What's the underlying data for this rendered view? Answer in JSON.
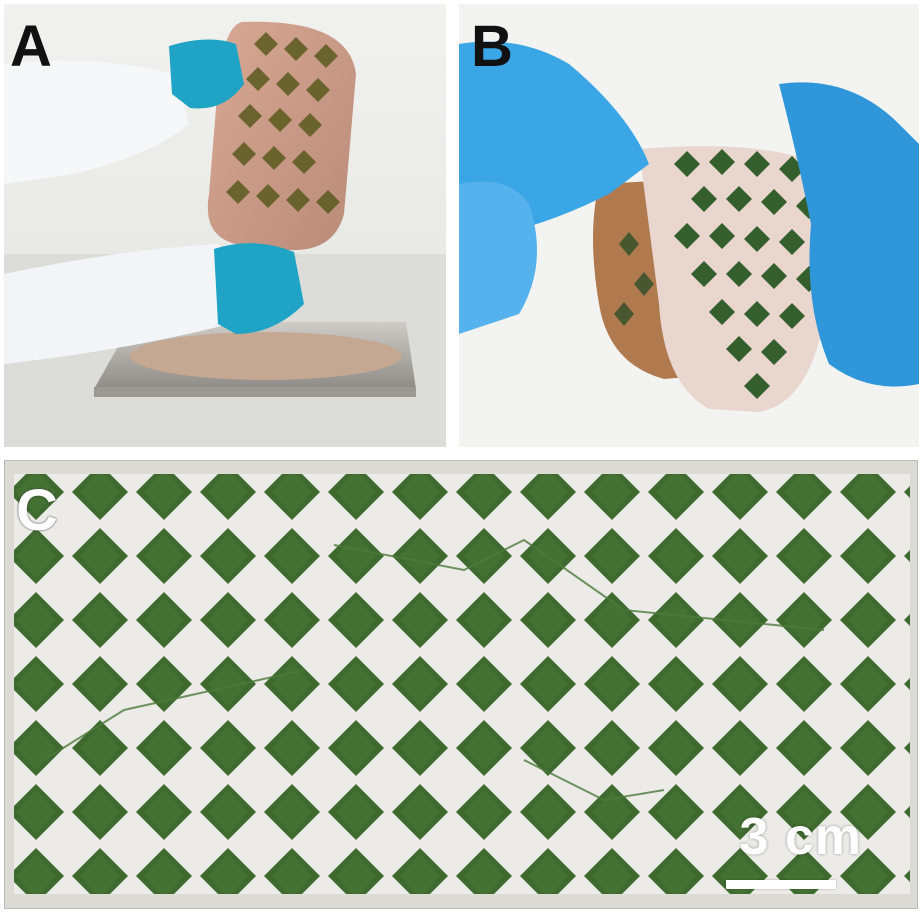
{
  "figure": {
    "panels": [
      {
        "id": "A",
        "label": "A",
        "description_icon": "photo-hands-lifting-sheet-from-tray"
      },
      {
        "id": "B",
        "label": "B",
        "description_icon": "photo-hands-folding-sheet"
      },
      {
        "id": "C",
        "label": "C",
        "description_icon": "photo-green-diamond-grid-sheet"
      }
    ],
    "scale_bar": {
      "label": "3 cm"
    }
  },
  "colors": {
    "glove": "#1fa4c6",
    "sheet": "#c79a86",
    "algae_green": "#3f6b30",
    "tray": "#b6b2ad",
    "background_c": "#eceae6"
  }
}
